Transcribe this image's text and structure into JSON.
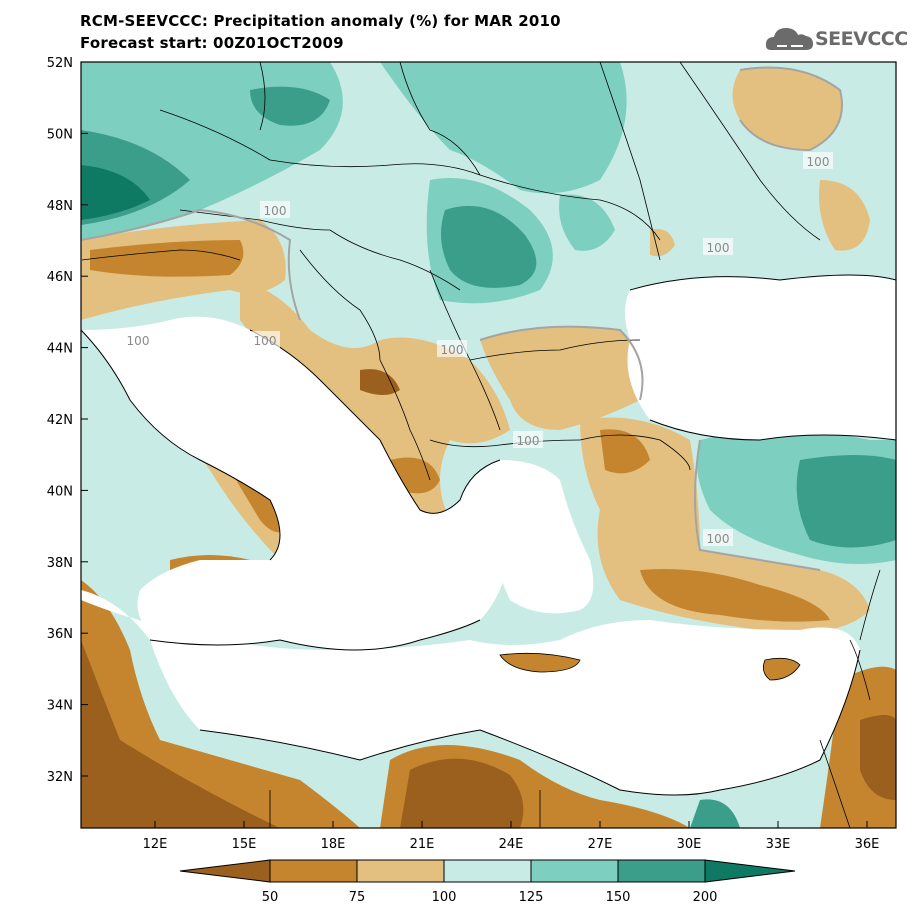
{
  "title": "RCM-SEEVCCC: Precipitation anomaly (%) for MAR 2010",
  "subtitle": "Forecast start: 00Z01OCT2009",
  "logo_text": "SEEVCCC",
  "y_ticks": [
    "52N",
    "50N",
    "48N",
    "46N",
    "44N",
    "42N",
    "40N",
    "38N",
    "36N",
    "34N",
    "32N"
  ],
  "x_ticks": [
    "12E",
    "15E",
    "18E",
    "21E",
    "24E",
    "27E",
    "30E",
    "33E",
    "36E"
  ],
  "contour_label": "100",
  "colorbar": {
    "labels": [
      "50",
      "75",
      "100",
      "125",
      "150",
      "200"
    ],
    "colors": [
      "#9b5f1e",
      "#c5852f",
      "#e3c07f",
      "#c8ece5",
      "#7dcfbf",
      "#3a9e8a",
      "#0e7a64"
    ]
  }
}
